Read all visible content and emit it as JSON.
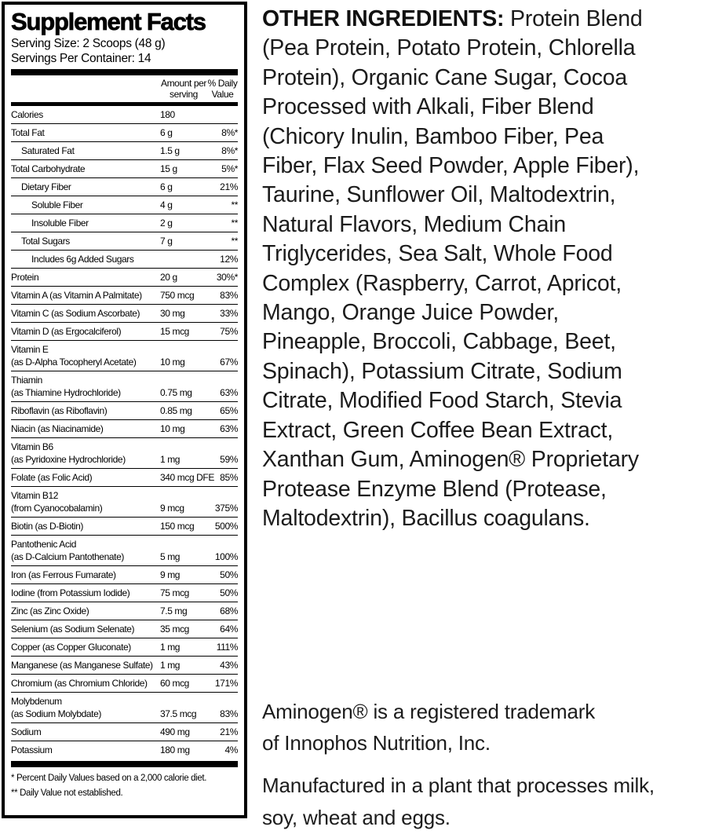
{
  "label": {
    "title": "Supplement Facts",
    "serving_size": "Serving Size: 2 Scoops (48 g)",
    "servings_per_container": "Servings Per Container: 14",
    "col_amount": "Amount per\nserving",
    "col_dv": "% Daily\nValue",
    "rows": [
      {
        "name": "Calories",
        "amount": "180",
        "dv": "",
        "indent": 0
      },
      {
        "name": "Total Fat",
        "amount": "6 g",
        "dv": "8%*",
        "indent": 0
      },
      {
        "name": "Saturated Fat",
        "amount": "1.5 g",
        "dv": "8%*",
        "indent": 1
      },
      {
        "name": "Total Carbohydrate",
        "amount": "15 g",
        "dv": "5%*",
        "indent": 0
      },
      {
        "name": "Dietary Fiber",
        "amount": "6 g",
        "dv": "21%",
        "indent": 1
      },
      {
        "name": "Soluble Fiber",
        "amount": "4 g",
        "dv": "**",
        "indent": 2
      },
      {
        "name": "Insoluble Fiber",
        "amount": "2 g",
        "dv": "**",
        "indent": 2
      },
      {
        "name": "Total Sugars",
        "amount": "7 g",
        "dv": "**",
        "indent": 1
      },
      {
        "name": "Includes 6g Added Sugars",
        "amount": "",
        "dv": "12%",
        "indent": 2
      },
      {
        "name": "Protein",
        "amount": "20 g",
        "dv": "30%*",
        "indent": 0
      },
      {
        "name": "Vitamin A (as Vitamin A Palmitate)",
        "amount": "750 mcg",
        "dv": "83%",
        "indent": 0
      },
      {
        "name": "Vitamin C (as Sodium Ascorbate)",
        "amount": "30 mg",
        "dv": "33%",
        "indent": 0
      },
      {
        "name": "Vitamin D (as Ergocalciferol)",
        "amount": "15 mcg",
        "dv": "75%",
        "indent": 0
      },
      {
        "name": "Vitamin E",
        "name2": "(as D-Alpha Tocopheryl Acetate)",
        "amount": "10 mg",
        "dv": "67%",
        "indent": 0
      },
      {
        "name": "Thiamin",
        "name2": "(as Thiamine Hydrochloride)",
        "amount": "0.75 mg",
        "dv": "63%",
        "indent": 0
      },
      {
        "name": "Riboflavin (as Riboflavin)",
        "amount": "0.85 mg",
        "dv": "65%",
        "indent": 0
      },
      {
        "name": "Niacin (as Niacinamide)",
        "amount": "10 mg",
        "dv": "63%",
        "indent": 0
      },
      {
        "name": "Vitamin B6",
        "name2": "(as Pyridoxine Hydrochloride)",
        "amount": "1 mg",
        "dv": "59%",
        "indent": 0
      },
      {
        "name": "Folate (as Folic Acid)",
        "amount": "340 mcg DFE",
        "dv": "85%",
        "indent": 0
      },
      {
        "name": "Vitamin B12",
        "name2": "(from Cyanocobalamin)",
        "amount": "9 mcg",
        "dv": "375%",
        "indent": 0
      },
      {
        "name": "Biotin (as D-Biotin)",
        "amount": "150 mcg",
        "dv": "500%",
        "indent": 0
      },
      {
        "name": "Pantothenic Acid",
        "name2": "(as D-Calcium Pantothenate)",
        "amount": "5 mg",
        "dv": "100%",
        "indent": 0
      },
      {
        "name": "Iron (as Ferrous Fumarate)",
        "amount": "9 mg",
        "dv": "50%",
        "indent": 0
      },
      {
        "name": "Iodine (from Potassium Iodide)",
        "amount": "75 mcg",
        "dv": "50%",
        "indent": 0
      },
      {
        "name": "Zinc (as Zinc Oxide)",
        "amount": "7.5 mg",
        "dv": "68%",
        "indent": 0
      },
      {
        "name": "Selenium (as Sodium Selenate)",
        "amount": "35 mcg",
        "dv": "64%",
        "indent": 0
      },
      {
        "name": "Copper (as Copper Gluconate)",
        "amount": "1 mg",
        "dv": "111%",
        "indent": 0
      },
      {
        "name": "Manganese (as Manganese Sulfate)",
        "amount": "1 mg",
        "dv": "43%",
        "indent": 0
      },
      {
        "name": "Chromium (as Chromium Chloride)",
        "amount": "60 mcg",
        "dv": "171%",
        "indent": 0
      },
      {
        "name": "Molybdenum",
        "name2": "(as Sodium Molybdate)",
        "amount": "37.5 mcg",
        "dv": "83%",
        "indent": 0
      },
      {
        "name": "Sodium",
        "amount": "490 mg",
        "dv": "21%",
        "indent": 0
      },
      {
        "name": "Potassium",
        "amount": "180 mg",
        "dv": "4%",
        "indent": 0
      }
    ],
    "footnotes": [
      "* Percent Daily Values based on a 2,000 calorie diet.",
      "** Daily Value not established."
    ]
  },
  "other_ingredients": {
    "label": "OTHER INGREDIENTS:",
    "text": " Protein Blend\n(Pea Protein, Potato Protein, Chlorella\nProtein), Organic Cane Sugar, Cocoa\nProcessed with Alkali, Fiber Blend\n(Chicory Inulin, Bamboo Fiber, Pea\nFiber, Flax Seed Powder, Apple Fiber),\nTaurine, Sunflower Oil, Maltodextrin,\nNatural Flavors, Medium Chain\nTriglycerides, Sea Salt, Whole Food\nComplex (Raspberry, Carrot, Apricot,\nMango, Orange Juice Powder,\nPineapple, Broccoli, Cabbage, Beet,\nSpinach), Potassium Citrate, Sodium\nCitrate, Modified Food Starch, Stevia\nExtract, Green Coffee Bean Extract,\nXanthan Gum, Aminogen® Proprietary\nProtease Enzyme Blend (Protease,\nMaltodextrin), Bacillus coagulans."
  },
  "trademark_note": "Aminogen® is a registered trademark\nof Innophos Nutrition, Inc.",
  "manufacturing_note": "Manufactured in a plant that processes milk,\nsoy, wheat and eggs."
}
